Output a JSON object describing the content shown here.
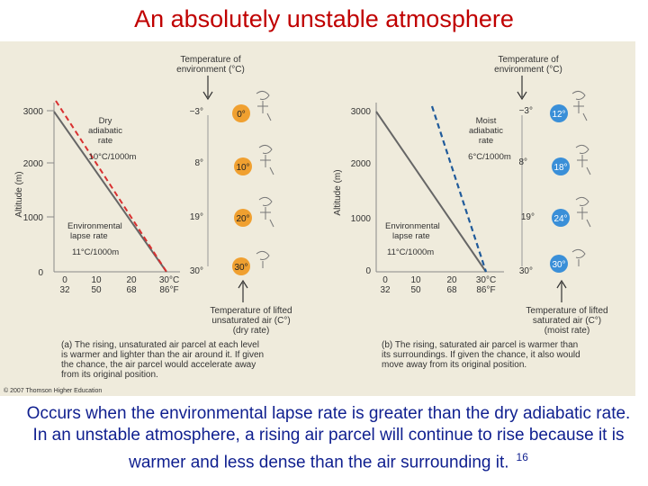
{
  "slide": {
    "title": "An absolutely unstable atmosphere",
    "caption": "Occurs when the environmental lapse rate is greater than the dry adiabatic rate. In an unstable atmosphere, a rising air parcel will continue to rise because it is warmer and less dense than the air surrounding it.",
    "slide_number": "16"
  },
  "figure": {
    "copyright": "© 2007 Thomson Higher Education",
    "colors": {
      "environment_line": "#666666",
      "dry_rate_line": "#d93030",
      "moist_rate_line": "#1f5a9a",
      "dry_parcel_fill": "#f0a030",
      "moist_parcel_fill": "#3a8fd8"
    },
    "panel_a": {
      "top_label_1": "Temperature of",
      "top_label_2": "environment (°C)",
      "y_axis_label": "Altitude (m)",
      "y_ticks": [
        "3000",
        "2000",
        "1000",
        "0"
      ],
      "x_ticks_c": [
        "0",
        "10",
        "20",
        "30°C"
      ],
      "x_ticks_f": [
        "32",
        "50",
        "68",
        "86°F"
      ],
      "env_temps": [
        "−3°",
        "8°",
        "19°",
        "30°"
      ],
      "parcel_temps": [
        "0°",
        "10°",
        "20°",
        "30°"
      ],
      "rate_label": [
        "Dry",
        "adiabatic",
        "rate"
      ],
      "rate_value": "10°C/1000m",
      "env_label": [
        "Environmental",
        "lapse rate"
      ],
      "env_value": "11°C/1000m",
      "bottom_label": [
        "Temperature of lifted",
        "unsaturated air (C°)",
        "(dry rate)"
      ],
      "note": [
        "(a) The rising, unsaturated air parcel at each level",
        "is warmer and lighter than the air around it. If given",
        "the chance, the air parcel would accelerate away",
        "from its original position."
      ]
    },
    "panel_b": {
      "top_label_1": "Temperature of",
      "top_label_2": "environment (°C)",
      "y_axis_label": "Altitude (m)",
      "y_ticks": [
        "3000",
        "2000",
        "1000",
        "0"
      ],
      "x_ticks_c": [
        "0",
        "10",
        "20",
        "30°C"
      ],
      "x_ticks_f": [
        "32",
        "50",
        "68",
        "86°F"
      ],
      "env_temps": [
        "−3°",
        "8°",
        "19°",
        "30°"
      ],
      "parcel_temps": [
        "12°",
        "18°",
        "24°",
        "30°"
      ],
      "rate_label": [
        "Moist",
        "adiabatic",
        "rate"
      ],
      "rate_value": "6°C/1000m",
      "env_label": [
        "Environmental",
        "lapse rate"
      ],
      "env_value": "11°C/1000m",
      "bottom_label": [
        "Temperature of lifted",
        "saturated air (C°)",
        "(moist rate)"
      ],
      "note": [
        "(b) The rising, saturated air parcel is warmer than",
        "its surroundings. If given the chance, it also would",
        "move away from its original position."
      ]
    }
  }
}
